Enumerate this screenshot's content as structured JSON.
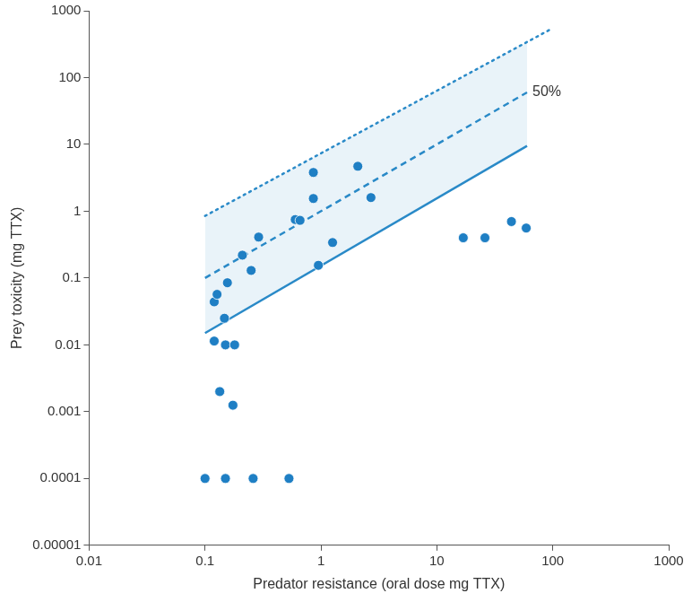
{
  "chart_data": {
    "type": "scatter",
    "x_label": "Predator resistance (oral dose mg TTX)",
    "y_label": "Prey toxicity (mg TTX)",
    "log": true,
    "grid": false,
    "xlim": [
      0.01,
      1000
    ],
    "xticks": [
      0.01,
      0.1,
      1,
      10,
      100,
      1000
    ],
    "ylim": [
      1e-05,
      1000
    ],
    "yticks": [
      1e-05,
      0.0001,
      0.001,
      0.01,
      0.1,
      1,
      10,
      100,
      1000
    ],
    "series": [
      {
        "type": "scatter",
        "marker": "circle",
        "color": "#1f7fc4",
        "x": [
          0.1,
          0.15,
          0.26,
          0.53,
          0.12,
          0.15,
          0.18,
          0.134,
          0.174,
          0.12,
          0.127,
          0.147,
          0.156,
          0.21,
          0.25,
          0.29,
          0.6,
          0.66,
          0.86,
          0.86,
          0.95,
          1.26,
          2.08,
          2.7,
          16.9,
          26,
          44,
          59
        ],
        "values": [
          0.0001,
          0.0001,
          0.0001,
          0.0001,
          0.0114,
          0.01,
          0.01,
          0.002,
          0.00125,
          0.044,
          0.057,
          0.025,
          0.085,
          0.22,
          0.13,
          0.41,
          0.75,
          0.73,
          1.55,
          3.8,
          0.155,
          0.34,
          4.7,
          1.6,
          0.4,
          0.4,
          0.7,
          0.56
        ]
      },
      {
        "type": "line",
        "line_style": "dotted",
        "color": "#2a8ac8",
        "x": [
          0.1,
          100
        ],
        "values": [
          0.85,
          550
        ]
      },
      {
        "type": "line",
        "line_style": "dashed",
        "color": "#2a8ac8",
        "name": "50%",
        "x": [
          0.1,
          60
        ],
        "values": [
          0.1,
          60
        ]
      },
      {
        "type": "line",
        "line_style": "solid",
        "color": "#2a8ac8",
        "x": [
          0.1,
          60
        ],
        "values": [
          0.015,
          9.5
        ]
      }
    ]
  }
}
